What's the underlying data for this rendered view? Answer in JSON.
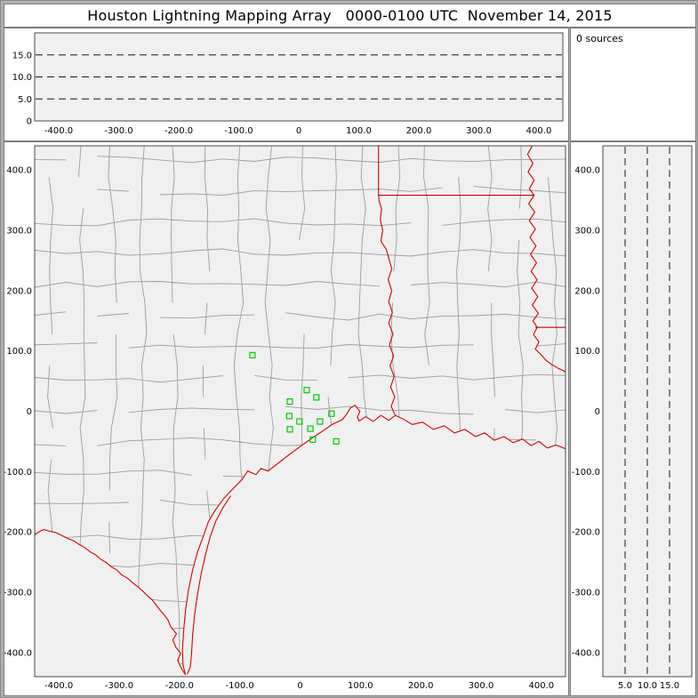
{
  "title": "Houston Lightning Mapping Array   0000-0100 UTC  November 14, 2015",
  "status": {
    "sources_label": "0 sources",
    "sources_count": 0
  },
  "colors": {
    "frame": "#b1b1b1",
    "panel": "#ffffff",
    "plot_bg": "#f0f0f0",
    "plot_frame": "#4a4a4a",
    "county": "#9e9e9e",
    "border_red": "#d40000",
    "station_green": "#00cc00",
    "dash": "#1a1a1a"
  },
  "chart_data": [
    {
      "id": "alt_vs_ew",
      "type": "scatter",
      "subtype": "altitude-vs-east-west-distance",
      "x_range": [
        -440,
        440
      ],
      "y_range": [
        0,
        20
      ],
      "x_tick_values": [
        -400,
        -300,
        -200,
        -100,
        0,
        100,
        200,
        300,
        400
      ],
      "x_tick_labels": [
        "-400.0",
        "-300.0",
        "-200.0",
        "-100.0",
        "0",
        "100.0",
        "200.0",
        "300.0",
        "400.0"
      ],
      "y_tick_values": [
        15,
        10,
        5,
        0
      ],
      "y_tick_labels": [
        "15.0",
        "10.0",
        "5.0",
        "0"
      ],
      "dashed_levels": [
        5,
        10,
        15
      ],
      "grid": "dashed horizontal altitude lines",
      "points": []
    },
    {
      "id": "map",
      "type": "scatter",
      "subtype": "plan-view-map",
      "x_range": [
        -440,
        440
      ],
      "y_range": [
        -440,
        440
      ],
      "x_tick_values": [
        -400,
        -300,
        -200,
        -100,
        0,
        100,
        200,
        300,
        400
      ],
      "x_tick_labels": [
        "-400.0",
        "-300.0",
        "-200.0",
        "-100.0",
        "0",
        "100.0",
        "200.0",
        "300.0",
        "400.0"
      ],
      "y_tick_values": [
        400,
        300,
        200,
        100,
        0,
        -100,
        -200,
        -300,
        -400
      ],
      "y_tick_labels": [
        "400.0",
        "300.0",
        "200.0",
        "100.0",
        "0",
        "-100.0",
        "-200.0",
        "-300.0",
        "-400.0"
      ],
      "stations_units": "km east, km north of network center",
      "stations_km": [
        [
          -79,
          93
        ],
        [
          11,
          35
        ],
        [
          27,
          23
        ],
        [
          -17,
          16
        ],
        [
          -18,
          -8
        ],
        [
          -1,
          -17
        ],
        [
          52,
          -4
        ],
        [
          33,
          -17
        ],
        [
          -17,
          -30
        ],
        [
          17,
          -29
        ],
        [
          21,
          -47
        ],
        [
          60,
          -50
        ]
      ],
      "points": []
    },
    {
      "id": "alt_vs_ns",
      "type": "scatter",
      "subtype": "altitude-vs-north-south-distance",
      "x_range": [
        0,
        20
      ],
      "y_range": [
        -440,
        440
      ],
      "x_tick_values": [
        5,
        10,
        15
      ],
      "x_tick_labels": [
        "5.0",
        "10.0",
        "15.0"
      ],
      "y_tick_values": [
        400,
        300,
        200,
        100,
        0,
        -100,
        -200,
        -300,
        -400
      ],
      "y_tick_labels": [
        "400.0",
        "300.0",
        "200.0",
        "100.0",
        "0",
        "-100.0",
        "-200.0",
        "-300.0",
        "-400.0"
      ],
      "dashed_levels": [
        5,
        10,
        15
      ],
      "grid": "dashed vertical altitude lines",
      "points": []
    }
  ]
}
